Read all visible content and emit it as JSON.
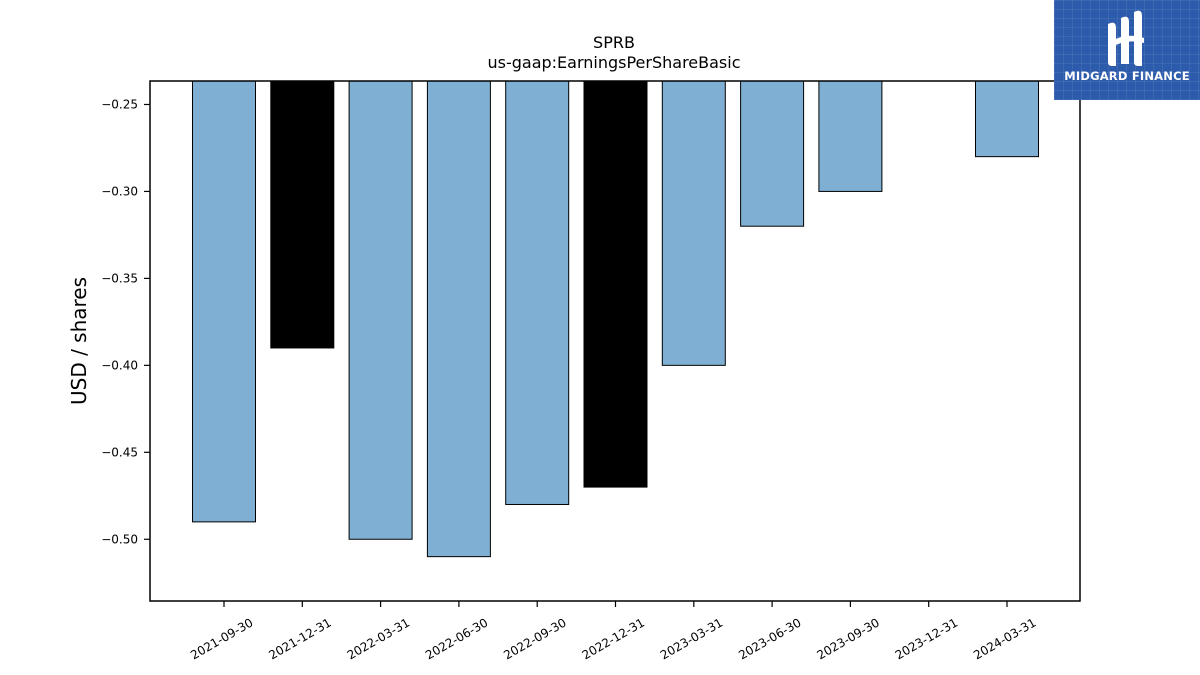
{
  "chart_data": {
    "type": "bar",
    "title": "SPRB",
    "subtitle": "us-gaap:EarningsPerShareBasic",
    "ylabel": "USD / shares",
    "xlabel": "",
    "categories": [
      "2021-09-30",
      "2021-12-31",
      "2022-03-31",
      "2022-06-30",
      "2022-09-30",
      "2022-12-31",
      "2023-03-31",
      "2023-06-30",
      "2023-09-30",
      "2023-12-31",
      "2024-03-31"
    ],
    "values": [
      -0.49,
      -0.39,
      -0.5,
      -0.51,
      -0.48,
      -0.47,
      -0.4,
      -0.32,
      -0.3,
      null,
      -0.28
    ],
    "bar_colors": [
      "#7fb0d4",
      "#000000",
      "#7fb0d4",
      "#7fb0d4",
      "#7fb0d4",
      "#000000",
      "#7fb0d4",
      "#7fb0d4",
      "#7fb0d4",
      "#7fb0d4",
      "#7fb0d4"
    ],
    "ylim": [
      -0.5355,
      -0.2365
    ],
    "yticks": [
      -0.25,
      -0.3,
      -0.35,
      -0.4,
      -0.45,
      -0.5
    ],
    "ytick_labels": [
      "−0.25",
      "−0.30",
      "−0.35",
      "−0.40",
      "−0.45",
      "−0.50"
    ],
    "grid": false,
    "legend": "none"
  },
  "logo": {
    "text": "MIDGARD FINANCE",
    "icon": "midgard-logo-icon",
    "background": "#2d5bab"
  }
}
